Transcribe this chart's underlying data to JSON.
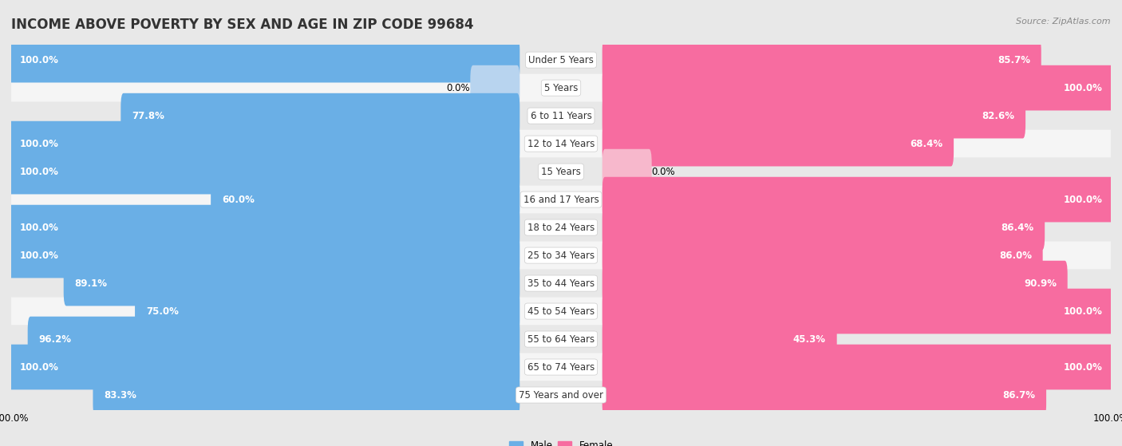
{
  "title": "INCOME ABOVE POVERTY BY SEX AND AGE IN ZIP CODE 99684",
  "source": "Source: ZipAtlas.com",
  "categories": [
    "Under 5 Years",
    "5 Years",
    "6 to 11 Years",
    "12 to 14 Years",
    "15 Years",
    "16 and 17 Years",
    "18 to 24 Years",
    "25 to 34 Years",
    "35 to 44 Years",
    "45 to 54 Years",
    "55 to 64 Years",
    "65 to 74 Years",
    "75 Years and over"
  ],
  "male": [
    100.0,
    0.0,
    77.8,
    100.0,
    100.0,
    60.0,
    100.0,
    100.0,
    89.1,
    75.0,
    96.2,
    100.0,
    83.3
  ],
  "female": [
    85.7,
    100.0,
    82.6,
    68.4,
    0.0,
    100.0,
    86.4,
    86.0,
    90.9,
    100.0,
    45.3,
    100.0,
    86.7
  ],
  "male_color": "#6aafe6",
  "female_color": "#f76ca0",
  "male_color_light": "#b8d4ef",
  "female_color_light": "#f7b8cc",
  "row_bg_odd": "#e8e8e8",
  "row_bg_even": "#f5f5f5",
  "background_color": "#e8e8e8",
  "label_bg": "#ffffff",
  "title_fontsize": 12,
  "label_fontsize": 8.5,
  "value_fontsize": 8.5,
  "fig_width": 14.06,
  "fig_height": 5.59
}
